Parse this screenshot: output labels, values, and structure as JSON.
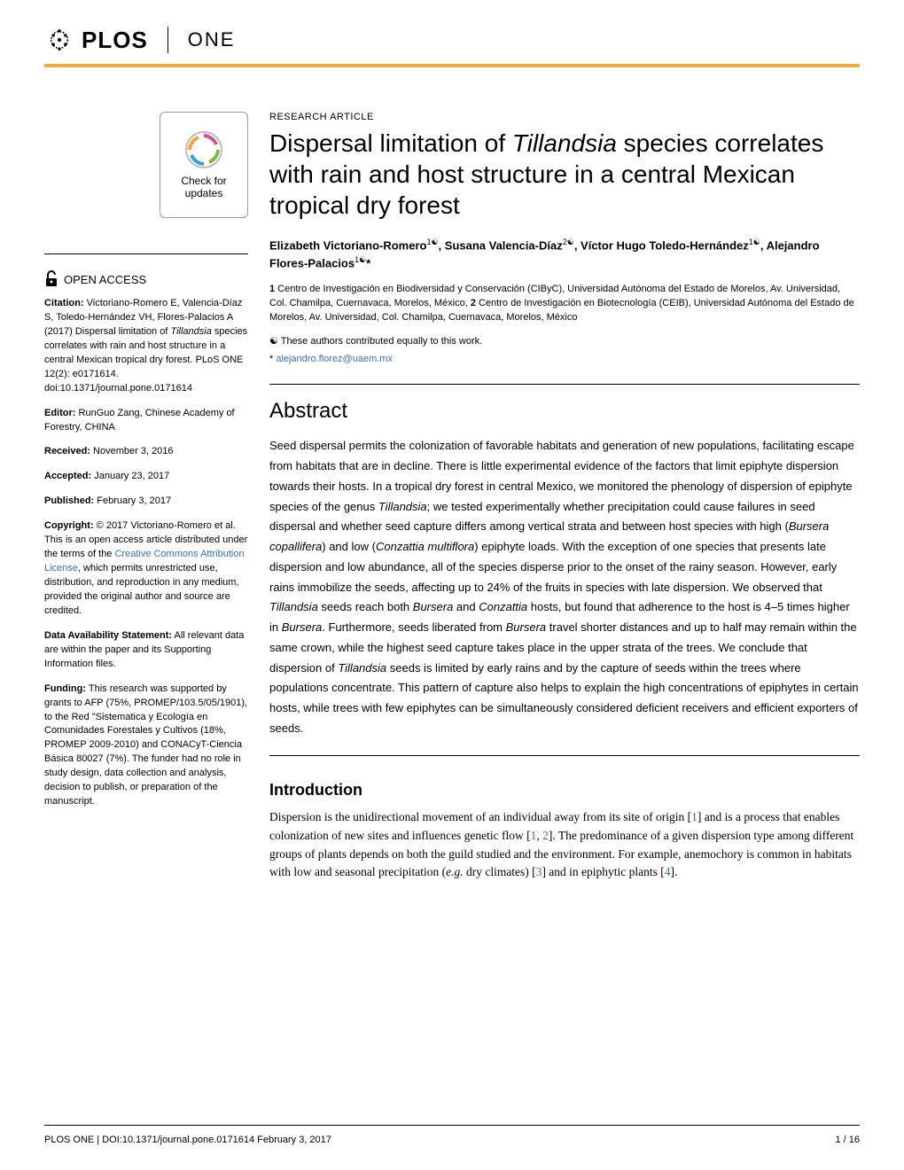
{
  "brand": {
    "plos_text": "PLOS",
    "one_text": "ONE",
    "orange_color": "#f4a93f"
  },
  "updates_badge": {
    "line1": "Check for",
    "line2": "updates"
  },
  "article": {
    "type": "RESEARCH ARTICLE",
    "title_pre": "Dispersal limitation of ",
    "title_italic": "Tillandsia",
    "title_post": " species correlates with rain and host structure in a central Mexican tropical dry forest"
  },
  "authors_html": "Elizabeth Victoriano-Romero<sup>1☯</sup>, Susana Valencia-Díaz<sup>2☯</sup>, Víctor Hugo Toledo-Hernández<sup>1☯</sup>, Alejandro Flores-Palacios<sup>1☯</sup>*",
  "affiliations": "1 Centro de Investigación en Biodiversidad y Conservación (CIByC), Universidad Autónoma del Estado de Morelos, Av. Universidad, Col. Chamilpa, Cuernavaca, Morelos, México, 2 Centro de Investigación en Biotecnología (CEIB), Universidad Autónoma del Estado de Morelos, Av. Universidad, Col. Chamilpa, Cuernavaca, Morelos, México",
  "contrib_note": "☯ These authors contributed equally to this work.",
  "email_prefix": "* ",
  "email": "alejandro.florez@uaem.mx",
  "abstract": {
    "heading": "Abstract",
    "text_parts": [
      "Seed dispersal permits the colonization of favorable habitats and generation of new populations, facilitating escape from habitats that are in decline. There is little experimental evidence of the factors that limit epiphyte dispersion towards their hosts. In a tropical dry forest in central Mexico, we monitored the phenology of dispersion of epiphyte species of the genus ",
      "Tillandsia",
      "; we tested experimentally whether precipitation could cause failures in seed dispersal and whether seed capture differs among vertical strata and between host species with high (",
      "Bursera copallifera",
      ") and low (",
      "Conzattia multiflora",
      ") epiphyte loads. With the exception of one species that presents late dispersion and low abundance, all of the species disperse prior to the onset of the rainy season. However, early rains immobilize the seeds, affecting up to 24% of the fruits in species with late dispersion. We observed that ",
      "Tillandsia",
      " seeds reach both ",
      "Bursera",
      " and ",
      "Conzattia",
      " hosts, but found that adherence to the host is 4–5 times higher in ",
      "Bursera",
      ". Furthermore, seeds liberated from ",
      "Bursera",
      " travel shorter distances and up to half may remain within the same crown, while the highest seed capture takes place in the upper strata of the trees. We conclude that dispersion of ",
      "Tillandsia",
      " seeds is limited by early rains and by the capture of seeds within the trees where populations concentrate. This pattern of capture also helps to explain the high concentrations of epiphytes in certain hosts, while trees with few epiphytes can be simultaneously considered deficient receivers and efficient exporters of seeds."
    ]
  },
  "sidebar": {
    "open_access": "OPEN ACCESS",
    "citation": {
      "label": "Citation:",
      "text_pre": " Victoriano-Romero E, Valencia-Díaz S, Toledo-Hernández VH, Flores-Palacios A (2017) Dispersal limitation of ",
      "text_italic": "Tillandsia",
      "text_post": " species correlates with rain and host structure in a central Mexican tropical dry forest. PLoS ONE 12(2): e0171614. doi:10.1371/journal.pone.0171614"
    },
    "editor": {
      "label": "Editor:",
      "text": " RunGuo Zang, Chinese Academy of Forestry, CHINA"
    },
    "received": {
      "label": "Received:",
      "text": " November 3, 2016"
    },
    "accepted": {
      "label": "Accepted:",
      "text": " January 23, 2017"
    },
    "published": {
      "label": "Published:",
      "text": " February 3, 2017"
    },
    "copyright": {
      "label": "Copyright:",
      "text_pre": " © 2017 Victoriano-Romero et al. This is an open access article distributed under the terms of the ",
      "link": "Creative Commons Attribution License",
      "text_post": ", which permits unrestricted use, distribution, and reproduction in any medium, provided the original author and source are credited."
    },
    "data": {
      "label": "Data Availability Statement:",
      "text": " All relevant data are within the paper and its Supporting Information files."
    },
    "funding": {
      "label": "Funding:",
      "text": " This research was supported by grants to AFP (75%, PROMEP/103.5/05/1901), to the Red \"Sistematica y Ecología en Comunidades Forestales y Cultivos (18%, PROMEP 2009-2010) and CONACyT-Ciencia Básica 80027 (7%). The funder had no role in study design, data collection and analysis, decision to publish, or preparation of the manuscript."
    }
  },
  "introduction": {
    "heading": "Introduction",
    "text_parts": [
      "Dispersion is the unidirectional movement of an individual away from its site of origin [",
      "1",
      "] and is a process that enables colonization of new sites and influences genetic flow [",
      "1",
      ", ",
      "2",
      "]. The predominance of a given dispersion type among different groups of plants depends on both the guild studied and the environment. For example, anemochory is common in habitats with low and seasonal precipitation (",
      "e.g.",
      " dry climates) [",
      "3",
      "] and in epiphytic plants [",
      "4",
      "]."
    ]
  },
  "footer": {
    "left": "PLOS ONE | DOI:10.1371/journal.pone.0171614    February 3, 2017",
    "right": "1 / 16"
  },
  "colors": {
    "link": "#3b6fb6",
    "text": "#000000"
  }
}
